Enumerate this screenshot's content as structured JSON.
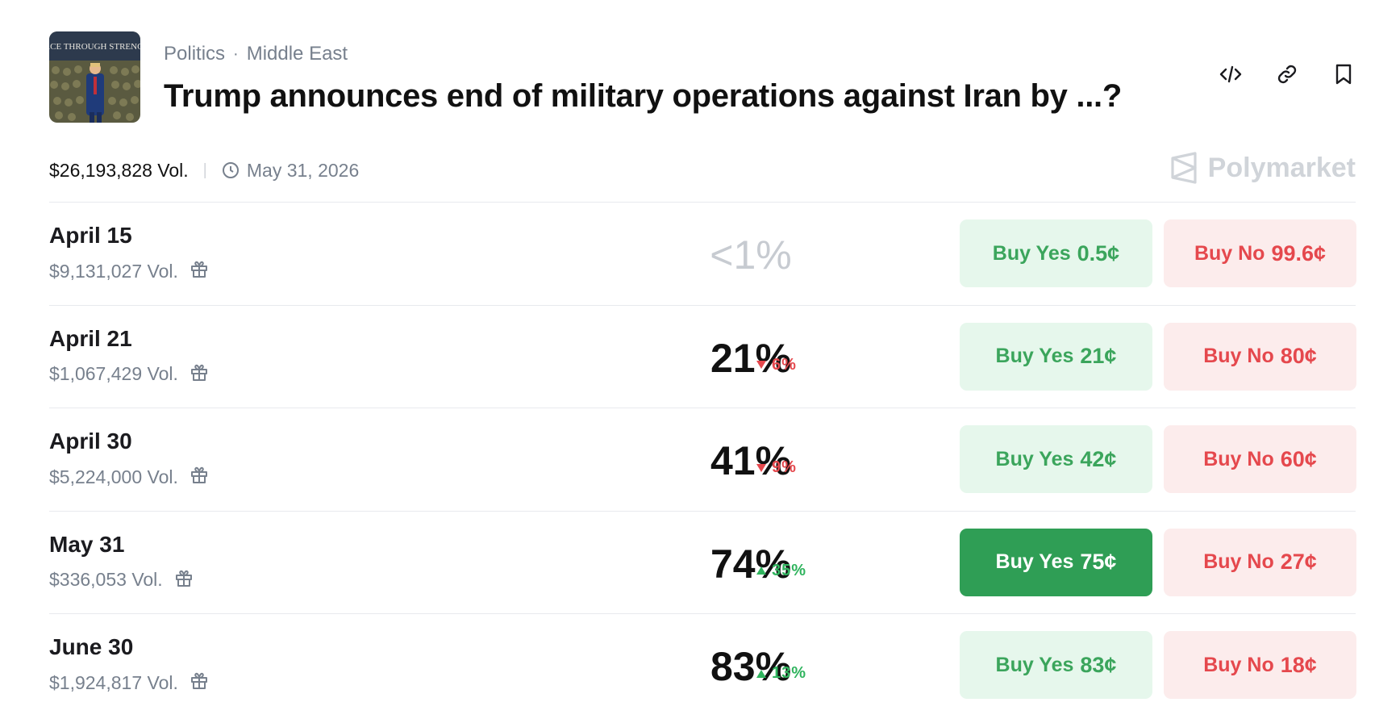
{
  "header": {
    "thumbnail_alt": "Trump speaking at podium",
    "thumbnail_banner_text": "PEACE THROUGH STRENGTH",
    "category": "Politics",
    "subcategory": "Middle East",
    "title": "Trump announces end of military operations against Iran by ...?",
    "icons": [
      "embed-code-icon",
      "link-icon",
      "bookmark-icon"
    ]
  },
  "meta": {
    "volume": "$26,193,828 Vol.",
    "end_date": "May 31, 2026",
    "brand": "Polymarket"
  },
  "colors": {
    "yes_bg": "#e6f7ec",
    "yes_text": "#3ba55c",
    "yes_active": "#2f9e55",
    "no_bg": "#fcecec",
    "no_text": "#e5484d",
    "up": "#30b45e",
    "down": "#e5484d"
  },
  "markets": [
    {
      "date": "April 15",
      "volume": "$9,131,027 Vol.",
      "probability": "<1%",
      "change": "",
      "direction": "none",
      "yes_label": "Buy Yes",
      "yes_price": "0.5¢",
      "no_label": "Buy No",
      "no_price": "99.6¢",
      "yes_active": false
    },
    {
      "date": "April 21",
      "volume": "$1,067,429 Vol.",
      "probability": "21%",
      "change": "6%",
      "direction": "down",
      "yes_label": "Buy Yes",
      "yes_price": "21¢",
      "no_label": "Buy No",
      "no_price": "80¢",
      "yes_active": false
    },
    {
      "date": "April 30",
      "volume": "$5,224,000 Vol.",
      "probability": "41%",
      "change": "9%",
      "direction": "down",
      "yes_label": "Buy Yes",
      "yes_price": "42¢",
      "no_label": "Buy No",
      "no_price": "60¢",
      "yes_active": false
    },
    {
      "date": "May 31",
      "volume": "$336,053 Vol.",
      "probability": "74%",
      "change": "35%",
      "direction": "up",
      "yes_label": "Buy Yes",
      "yes_price": "75¢",
      "no_label": "Buy No",
      "no_price": "27¢",
      "yes_active": true
    },
    {
      "date": "June 30",
      "volume": "$1,924,817 Vol.",
      "probability": "83%",
      "change": "13%",
      "direction": "up",
      "yes_label": "Buy Yes",
      "yes_price": "83¢",
      "no_label": "Buy No",
      "no_price": "18¢",
      "yes_active": false
    }
  ]
}
